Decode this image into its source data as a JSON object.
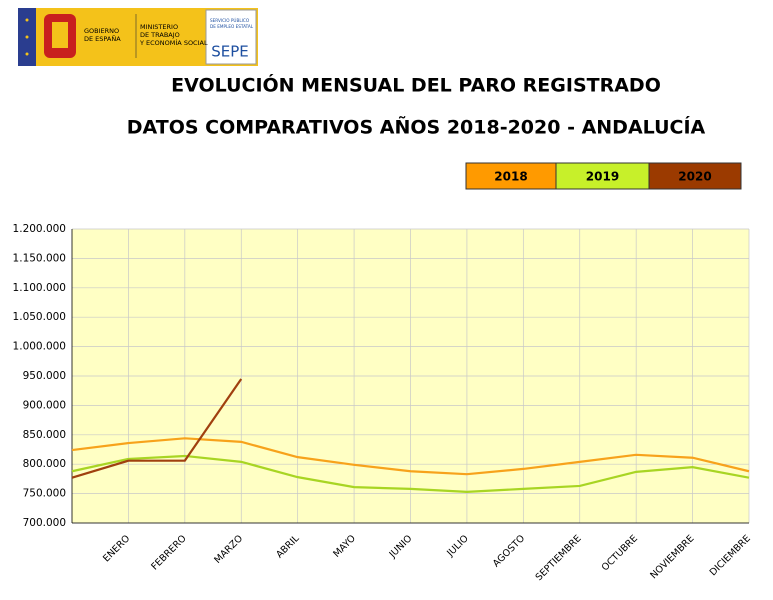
{
  "header": {
    "gobierno": [
      "GOBIERNO",
      "DE ESPAÑA"
    ],
    "ministerio": [
      "MINISTERIO",
      "DE TRABAJO",
      "Y ECONOMÍA SOCIAL"
    ],
    "sepe_caption": [
      "SERVICIO PÚBLICO",
      "DE EMPLEO ESTATAL"
    ],
    "sepe": "SEPE"
  },
  "chart_data": {
    "type": "line",
    "title": "EVOLUCIÓN MENSUAL DEL PARO REGISTRADO",
    "subtitle": "DATOS COMPARATIVOS AÑOS 2018-2020 - ANDALUCÍA",
    "categories": [
      null,
      "ENERO",
      "FEBRERO",
      "MARZO",
      "ABRIL",
      "MAYO",
      "JUNIO",
      "JULIO",
      "AGOSTO",
      "SEPTIEMBRE",
      "OCTUBRE",
      "NOVIEMBRE",
      "DICIEMBRE"
    ],
    "series": [
      {
        "name": "2018",
        "color": "#f7a21b",
        "legend_color": "#ff9a00",
        "values": [
          824000,
          836000,
          844000,
          838000,
          812000,
          799000,
          788000,
          783000,
          792000,
          804000,
          816000,
          811000,
          788000
        ]
      },
      {
        "name": "2019",
        "color": "#a8d523",
        "legend_color": "#c7f02a",
        "values": [
          788000,
          809000,
          814000,
          804000,
          778000,
          761000,
          758000,
          753000,
          758000,
          763000,
          787000,
          795000,
          777000
        ]
      },
      {
        "name": "2020",
        "color": "#a0400f",
        "legend_color": "#9b3a00",
        "values": [
          777000,
          806000,
          806000,
          945000,
          null,
          null,
          null,
          null,
          null,
          null,
          null,
          null,
          null
        ]
      }
    ],
    "ylim": [
      700000,
      1200000
    ],
    "yticks": [
      {
        "value": 700000,
        "label": "700.000"
      },
      {
        "value": 750000,
        "label": "750.000"
      },
      {
        "value": 800000,
        "label": "800.000"
      },
      {
        "value": 850000,
        "label": "850.000"
      },
      {
        "value": 900000,
        "label": "900.000"
      },
      {
        "value": 950000,
        "label": "950.000"
      },
      {
        "value": 1000000,
        "label": "1.000.000"
      },
      {
        "value": 1050000,
        "label": "1.050.000"
      },
      {
        "value": 1100000,
        "label": "1.100.000"
      },
      {
        "value": 1150000,
        "label": "1.150.000"
      },
      {
        "value": 1200000,
        "label": "1.200.000"
      }
    ],
    "grid": true,
    "background": "#ffffc4"
  }
}
